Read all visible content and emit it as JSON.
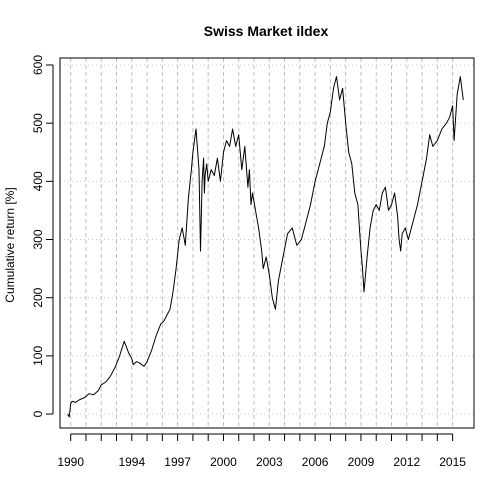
{
  "chart_data": {
    "type": "line",
    "title": "Swiss Market ildex",
    "xlabel": "",
    "ylabel": "Cumulative return [%]",
    "xlim": [
      1989.3,
      2016.4
    ],
    "ylim": [
      -24,
      612
    ],
    "x_ticks": [
      1990,
      1994,
      1997,
      2000,
      2003,
      2006,
      2009,
      2012,
      2015
    ],
    "x_tick_labels": [
      "1990",
      "1994",
      "1997",
      "2000",
      "2003",
      "2006",
      "2009",
      "2012",
      "2015"
    ],
    "y_ticks": [
      0,
      100,
      200,
      300,
      400,
      500,
      600
    ],
    "y_tick_labels": [
      "0",
      "100",
      "200",
      "300",
      "400",
      "500",
      "600"
    ],
    "grid": {
      "horizontal": "dotted at y ticks",
      "vertical": "dashed at year boundaries",
      "vertical_years": [
        1990,
        1991,
        1992,
        1993,
        1994,
        1995,
        1996,
        1997,
        1998,
        1999,
        2000,
        2001,
        2002,
        2003,
        2004,
        2005,
        2006,
        2007,
        2008,
        2009,
        2010,
        2011,
        2012,
        2013,
        2014,
        2015
      ]
    },
    "series": [
      {
        "color": "#000000",
        "x": [
          1989.8,
          1989.9,
          1990.0,
          1990.1,
          1990.3,
          1990.6,
          1990.9,
          1991.2,
          1991.5,
          1991.8,
          1992.0,
          1992.3,
          1992.6,
          1992.9,
          1993.2,
          1993.5,
          1993.8,
          1994.0,
          1994.1,
          1994.3,
          1994.5,
          1994.8,
          1995.0,
          1995.3,
          1995.6,
          1995.9,
          1996.1,
          1996.3,
          1996.5,
          1996.7,
          1996.9,
          1997.1,
          1997.3,
          1997.5,
          1997.6,
          1997.7,
          1997.9,
          1998.0,
          1998.2,
          1998.4,
          1998.5,
          1998.6,
          1998.7,
          1998.75,
          1998.8,
          1998.9,
          1999.0,
          1999.2,
          1999.4,
          1999.6,
          1999.8,
          2000.0,
          2000.2,
          2000.4,
          2000.6,
          2000.8,
          2001.0,
          2001.2,
          2001.4,
          2001.6,
          2001.7,
          2001.8,
          2001.9,
          2002.1,
          2002.3,
          2002.5,
          2002.6,
          2002.8,
          2003.0,
          2003.1,
          2003.2,
          2003.4,
          2003.6,
          2003.9,
          2004.2,
          2004.5,
          2004.8,
          2005.1,
          2005.4,
          2005.7,
          2006.0,
          2006.2,
          2006.4,
          2006.6,
          2006.8,
          2007.0,
          2007.2,
          2007.4,
          2007.6,
          2007.8,
          2008.0,
          2008.2,
          2008.4,
          2008.6,
          2008.8,
          2008.9,
          2009.0,
          2009.1,
          2009.2,
          2009.4,
          2009.6,
          2009.8,
          2010.0,
          2010.2,
          2010.4,
          2010.6,
          2010.8,
          2011.0,
          2011.2,
          2011.4,
          2011.5,
          2011.6,
          2011.7,
          2011.9,
          2012.1,
          2012.4,
          2012.7,
          2013.0,
          2013.3,
          2013.5,
          2013.7,
          2014.0,
          2014.3,
          2014.6,
          2014.8,
          2015.0,
          2015.1,
          2015.3,
          2015.5,
          2015.7
        ],
        "y": [
          0,
          -5,
          18,
          22,
          20,
          25,
          28,
          35,
          33,
          40,
          50,
          55,
          65,
          80,
          100,
          125,
          105,
          95,
          85,
          90,
          88,
          82,
          90,
          110,
          135,
          155,
          160,
          170,
          180,
          210,
          250,
          300,
          320,
          290,
          330,
          370,
          420,
          450,
          490,
          420,
          280,
          400,
          440,
          380,
          410,
          430,
          400,
          420,
          410,
          440,
          400,
          450,
          470,
          460,
          490,
          460,
          480,
          420,
          460,
          390,
          420,
          360,
          380,
          350,
          320,
          280,
          250,
          270,
          240,
          220,
          200,
          180,
          230,
          270,
          310,
          320,
          290,
          300,
          330,
          360,
          400,
          420,
          440,
          460,
          500,
          520,
          560,
          580,
          540,
          560,
          500,
          450,
          430,
          380,
          360,
          320,
          280,
          250,
          210,
          270,
          320,
          350,
          360,
          350,
          380,
          390,
          350,
          360,
          380,
          340,
          300,
          280,
          310,
          320,
          300,
          330,
          360,
          400,
          440,
          480,
          460,
          470,
          490,
          500,
          510,
          530,
          470,
          550,
          580,
          540
        ]
      }
    ]
  }
}
